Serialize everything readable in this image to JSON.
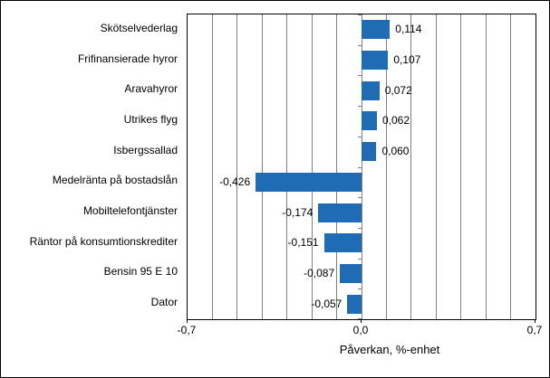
{
  "chart_data": {
    "type": "bar",
    "orientation": "horizontal",
    "categories": [
      "Skötselvederlag",
      "Frifinansierade hyror",
      "Aravahyror",
      "Utrikes flyg",
      "Isbergssallad",
      "Medelränta på bostadslån",
      "Mobiltelefontjänster",
      "Räntor på konsumtionskrediter",
      "Bensin 95 E 10",
      "Dator"
    ],
    "values": [
      0.114,
      0.107,
      0.072,
      0.062,
      0.06,
      -0.426,
      -0.174,
      -0.151,
      -0.087,
      -0.057
    ],
    "value_labels": [
      "0,114",
      "0,107",
      "0,072",
      "0,062",
      "0,060",
      "-0,426",
      "-0,174",
      "-0,151",
      "-0,087",
      "-0,057"
    ],
    "title": "",
    "xlabel": "Påverkan, %-enhet",
    "ylabel": "",
    "xlim": [
      -0.7,
      0.7
    ],
    "gridline_step": 0.1,
    "grid": true,
    "legend": false,
    "x_ticks": [
      -0.7,
      0.0,
      0.7
    ],
    "x_tick_labels": [
      "-0,7",
      "0,0",
      "0,7"
    ],
    "colors": {
      "bar": "#1f6cb4",
      "gridline": "#808080",
      "axis": "#000000",
      "background": "#ffffff"
    }
  }
}
